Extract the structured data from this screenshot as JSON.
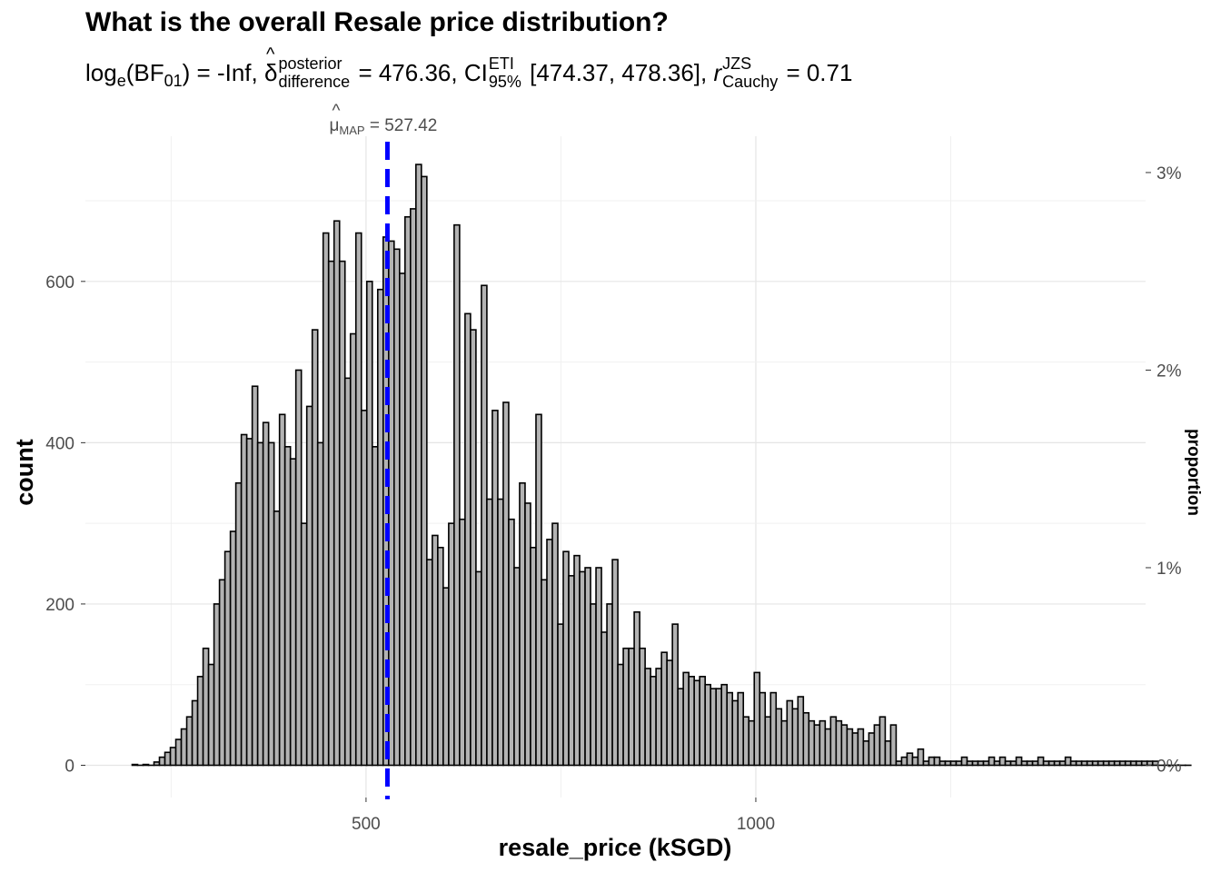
{
  "chart_data": {
    "type": "histogram",
    "title": "What is the overall Resale price distribution?",
    "subtitle": {
      "log_label": "log",
      "log_sub": "e",
      "bf_label": "(BF",
      "bf_sub": "01",
      "bf_close": ")",
      "bf_value": "= -Inf,",
      "delta_symbol": "δ",
      "delta_sup": "posterior",
      "delta_sub": "difference",
      "delta_value": "= 476.36,",
      "ci_label": "CI",
      "ci_sup": "ETI",
      "ci_sub": "95%",
      "ci_value": "[474.37, 478.36],",
      "r_symbol": "r",
      "r_sup": "JZS",
      "r_sub": "Cauchy",
      "r_value": "= 0.71"
    },
    "xlabel": "resale_price (kSGD)",
    "ylabel": "count",
    "ylabel_right": "proportion",
    "xlim": [
      140,
      1500
    ],
    "ylim": [
      -40,
      780
    ],
    "x_ticks": [
      500,
      1000
    ],
    "x_tick_labels": [
      "500",
      "1000"
    ],
    "y_ticks": [
      0,
      200,
      400,
      600
    ],
    "y_tick_labels": [
      "0",
      "200",
      "400",
      "600"
    ],
    "right_ticks": [
      0,
      1,
      2,
      3
    ],
    "right_tick_labels": [
      "0%",
      "1%",
      "2%",
      "3%"
    ],
    "total_count": 24500,
    "bin_width": 7,
    "bin_start": 200,
    "counts": [
      1,
      0,
      1,
      0,
      4,
      10,
      16,
      22,
      32,
      45,
      60,
      80,
      110,
      145,
      125,
      200,
      230,
      265,
      290,
      350,
      410,
      405,
      470,
      400,
      425,
      400,
      315,
      435,
      395,
      380,
      490,
      300,
      445,
      540,
      400,
      660,
      625,
      675,
      625,
      480,
      535,
      660,
      440,
      600,
      395,
      590,
      655,
      650,
      640,
      610,
      680,
      690,
      745,
      730,
      255,
      285,
      270,
      220,
      300,
      670,
      305,
      560,
      540,
      240,
      595,
      330,
      440,
      330,
      450,
      305,
      245,
      350,
      325,
      270,
      435,
      230,
      280,
      300,
      175,
      265,
      235,
      260,
      240,
      245,
      200,
      245,
      165,
      200,
      255,
      125,
      145,
      145,
      190,
      145,
      120,
      110,
      120,
      140,
      130,
      175,
      95,
      115,
      110,
      105,
      110,
      100,
      95,
      95,
      100,
      90,
      80,
      90,
      60,
      55,
      115,
      90,
      60,
      90,
      70,
      55,
      80,
      70,
      85,
      65,
      55,
      50,
      55,
      45,
      60,
      55,
      50,
      45,
      40,
      45,
      30,
      40,
      50,
      60,
      30,
      50,
      5,
      10,
      15,
      10,
      20,
      5,
      10,
      10,
      5,
      5,
      5,
      5,
      10,
      5,
      5,
      5,
      5,
      10,
      5,
      10,
      5,
      5,
      10,
      5,
      5,
      5,
      10,
      5,
      5,
      5,
      5,
      10,
      5,
      5,
      5,
      5,
      5,
      5,
      5,
      5,
      5,
      5,
      5,
      5,
      5,
      5,
      5,
      5,
      0,
      0,
      0,
      0,
      0,
      0
    ],
    "reference_line": {
      "x": 527.42,
      "label_symbol": "μ",
      "label_sub": "MAP",
      "label_value": "= 527.42",
      "color": "#0000ff"
    },
    "bar_color": "#b3b3b3",
    "bar_border": "#000000",
    "grid": true
  }
}
